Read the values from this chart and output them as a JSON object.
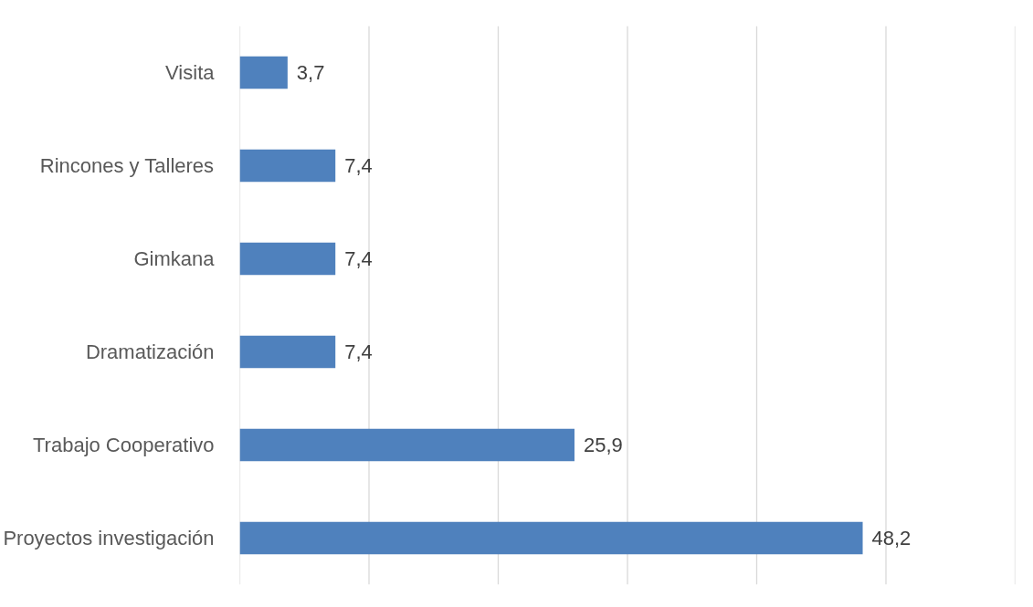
{
  "chart_data": {
    "type": "bar",
    "orientation": "horizontal",
    "categories": [
      "Visita",
      "Rincones y Talleres",
      "Gimkana",
      "Dramatización",
      "Trabajo Cooperativo",
      "Proyectos investigación"
    ],
    "values": [
      3.7,
      7.4,
      7.4,
      7.4,
      25.9,
      48.2
    ],
    "value_labels": [
      "3,7",
      "7,4",
      "7,4",
      "7,4",
      "25,9",
      "48,2"
    ],
    "color": "#4f81bd",
    "xlim": [
      0,
      60
    ],
    "xticks": [
      {
        "value": 0,
        "label": null
      },
      {
        "value": 10,
        "label": null
      },
      {
        "value": 20,
        "label": null
      },
      {
        "value": 30,
        "label": null
      },
      {
        "value": 40,
        "label": null
      },
      {
        "value": 50,
        "label": null
      },
      {
        "value": 60,
        "label": null
      }
    ],
    "grid": "x",
    "tick_labels": "y"
  }
}
